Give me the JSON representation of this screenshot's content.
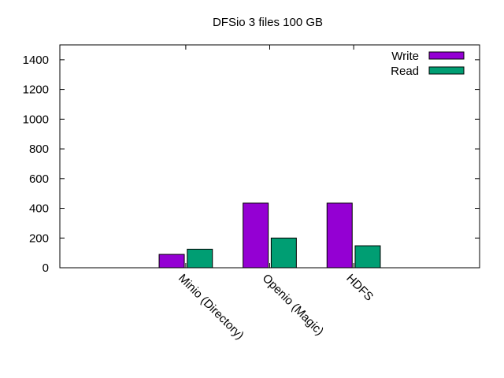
{
  "chart_data": {
    "type": "bar",
    "title": "DFSio 3 files 100 GB",
    "xlabel": "",
    "ylabel": "",
    "categories": [
      "Minio (Directory)",
      "Openio (Magic)",
      "HDFS"
    ],
    "series": [
      {
        "name": "Write",
        "color": "#9400d3",
        "values": [
          90,
          435,
          435
        ]
      },
      {
        "name": "Read",
        "color": "#009e73",
        "values": [
          125,
          200,
          148
        ]
      }
    ],
    "ylim": [
      0,
      1500
    ],
    "yticks": [
      0,
      200,
      400,
      600,
      800,
      1000,
      1200,
      1400
    ],
    "grid": false,
    "legend_position": "top-right"
  }
}
